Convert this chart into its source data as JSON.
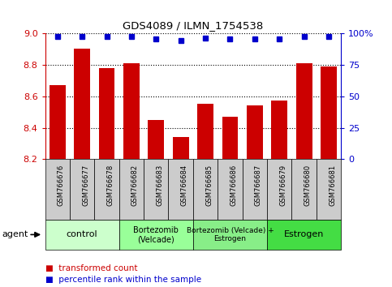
{
  "title": "GDS4089 / ILMN_1754538",
  "samples": [
    "GSM766676",
    "GSM766677",
    "GSM766678",
    "GSM766682",
    "GSM766683",
    "GSM766684",
    "GSM766685",
    "GSM766686",
    "GSM766687",
    "GSM766679",
    "GSM766680",
    "GSM766681"
  ],
  "bar_values": [
    8.67,
    8.9,
    8.78,
    8.81,
    8.45,
    8.34,
    8.55,
    8.47,
    8.54,
    8.57,
    8.81,
    8.79
  ],
  "dot_values": [
    97,
    97,
    97,
    97,
    95,
    94,
    96,
    95,
    95,
    95,
    97,
    97
  ],
  "ylim": [
    8.2,
    9.0
  ],
  "y_ticks": [
    8.2,
    8.4,
    8.6,
    8.8,
    9.0
  ],
  "right_ylim": [
    0,
    100
  ],
  "right_yticks": [
    0,
    25,
    50,
    75,
    100
  ],
  "right_yticklabels": [
    "0",
    "25",
    "50",
    "75",
    "100%"
  ],
  "bar_color": "#cc0000",
  "dot_color": "#0000cc",
  "groups": [
    {
      "label": "control",
      "start": 0,
      "end": 3,
      "color": "#ccffcc",
      "fontsize": 8
    },
    {
      "label": "Bortezomib\n(Velcade)",
      "start": 3,
      "end": 6,
      "color": "#99ff99",
      "fontsize": 7
    },
    {
      "label": "Bortezomib (Velcade) +\nEstrogen",
      "start": 6,
      "end": 9,
      "color": "#88ee88",
      "fontsize": 6.5
    },
    {
      "label": "Estrogen",
      "start": 9,
      "end": 12,
      "color": "#44dd44",
      "fontsize": 8
    }
  ],
  "agent_label": "agent",
  "legend_bar_label": "transformed count",
  "legend_dot_label": "percentile rank within the sample",
  "grid_color": "#000000",
  "tick_bg_color": "#cccccc",
  "background_color": "#ffffff"
}
